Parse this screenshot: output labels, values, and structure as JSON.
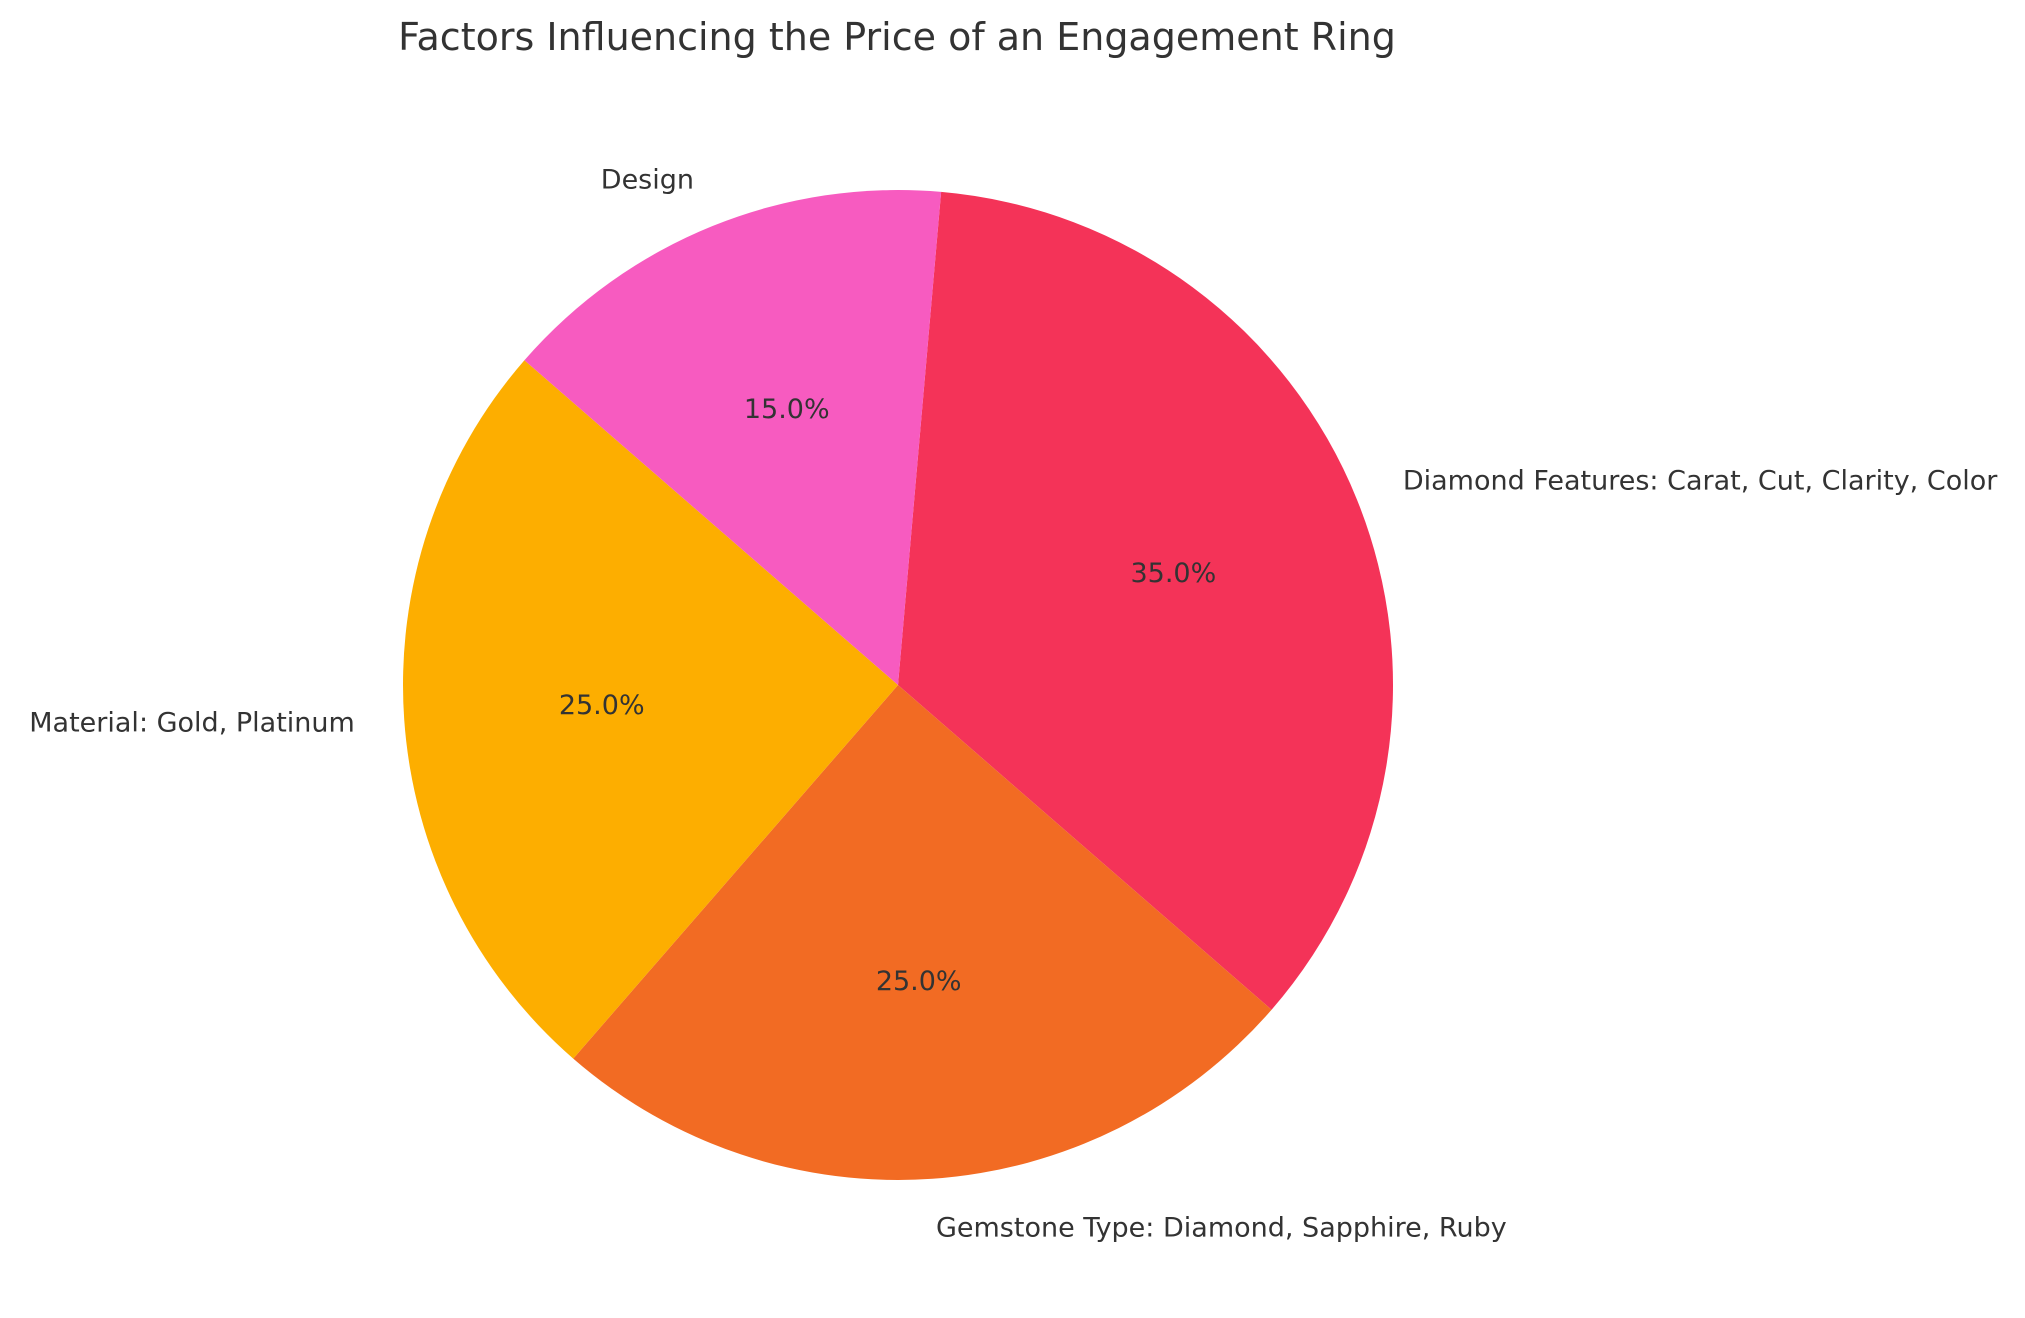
{
  "chart_data": {
    "type": "pie",
    "title": "Factors Influencing the Price of an Engagement Ring",
    "labels": [
      "Diamond Features: Carat, Cut, Clarity, Color",
      "Gemstone Type: Diamond, Sapphire, Ruby",
      "Material: Gold, Platinum",
      "Design"
    ],
    "values": [
      35.0,
      25.0,
      25.0,
      15.0
    ],
    "percent_labels": [
      "35.0%",
      "25.0%",
      "25.0%",
      "15.0%"
    ],
    "colors": [
      "#f43358",
      "#f26b23",
      "#fdae00",
      "#f75bc0"
    ],
    "start_angle_deg": 85,
    "direction": "clockwise",
    "legend": "none"
  }
}
